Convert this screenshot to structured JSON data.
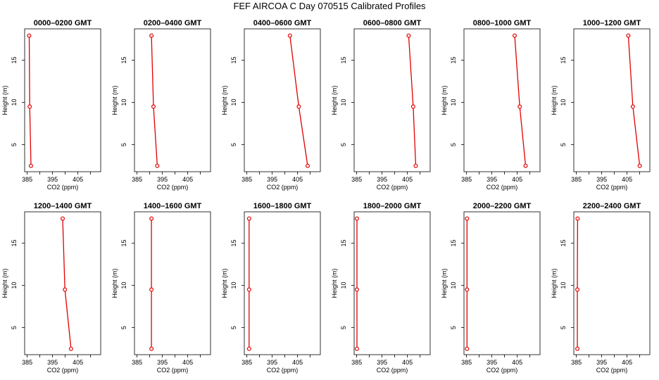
{
  "title": "FEF  AIRCOA C  Day 070515  Calibrated Profiles",
  "colors": {
    "series": "#e00000",
    "axis": "#000000",
    "background": "#ffffff"
  },
  "chart_data": [
    {
      "type": "line",
      "title": "0000–0200 GMT",
      "xlabel": "CO2 (ppm)",
      "ylabel": "Height (m)",
      "xlim": [
        384,
        414
      ],
      "ylim": [
        1.8,
        18.7
      ],
      "xticks": [
        385,
        390,
        395,
        400,
        405,
        410
      ],
      "xtick_labels": [
        "385",
        "",
        "395",
        "",
        "405",
        ""
      ],
      "yticks": [
        5,
        10,
        15
      ],
      "grid": false,
      "points": [
        {
          "x": 385.8,
          "y": 17.9
        },
        {
          "x": 386.0,
          "y": 9.5
        },
        {
          "x": 386.5,
          "y": 2.5
        }
      ]
    },
    {
      "type": "line",
      "title": "0200–0400 GMT",
      "xlabel": "CO2 (ppm)",
      "ylabel": "Height (m)",
      "xlim": [
        384,
        414
      ],
      "ylim": [
        1.8,
        18.7
      ],
      "xticks": [
        385,
        390,
        395,
        400,
        405,
        410
      ],
      "xtick_labels": [
        "385",
        "",
        "395",
        "",
        "405",
        ""
      ],
      "yticks": [
        5,
        10,
        15
      ],
      "grid": false,
      "points": [
        {
          "x": 390.7,
          "y": 17.9
        },
        {
          "x": 391.5,
          "y": 9.5
        },
        {
          "x": 393.0,
          "y": 2.5
        }
      ]
    },
    {
      "type": "line",
      "title": "0400–0600 GMT",
      "xlabel": "CO2 (ppm)",
      "ylabel": "Height (m)",
      "xlim": [
        384,
        414
      ],
      "ylim": [
        1.8,
        18.7
      ],
      "xticks": [
        385,
        390,
        395,
        400,
        405,
        410
      ],
      "xtick_labels": [
        "385",
        "",
        "395",
        "",
        "405",
        ""
      ],
      "yticks": [
        5,
        10,
        15
      ],
      "grid": false,
      "points": [
        {
          "x": 402.0,
          "y": 17.9
        },
        {
          "x": 405.5,
          "y": 9.5
        },
        {
          "x": 409.0,
          "y": 2.5
        }
      ]
    },
    {
      "type": "line",
      "title": "0600–0800 GMT",
      "xlabel": "CO2 (ppm)",
      "ylabel": "Height (m)",
      "xlim": [
        384,
        414
      ],
      "ylim": [
        1.8,
        18.7
      ],
      "xticks": [
        385,
        390,
        395,
        400,
        405,
        410
      ],
      "xtick_labels": [
        "385",
        "",
        "395",
        "",
        "405",
        ""
      ],
      "yticks": [
        5,
        10,
        15
      ],
      "grid": false,
      "points": [
        {
          "x": 405.5,
          "y": 17.9
        },
        {
          "x": 407.3,
          "y": 9.5
        },
        {
          "x": 408.3,
          "y": 2.5
        }
      ]
    },
    {
      "type": "line",
      "title": "0800–1000 GMT",
      "xlabel": "CO2 (ppm)",
      "ylabel": "Height (m)",
      "xlim": [
        384,
        414
      ],
      "ylim": [
        1.8,
        18.7
      ],
      "xticks": [
        385,
        390,
        395,
        400,
        405,
        410
      ],
      "xtick_labels": [
        "385",
        "",
        "395",
        "",
        "405",
        ""
      ],
      "yticks": [
        5,
        10,
        15
      ],
      "grid": false,
      "points": [
        {
          "x": 404.0,
          "y": 17.9
        },
        {
          "x": 406.0,
          "y": 9.5
        },
        {
          "x": 408.3,
          "y": 2.5
        }
      ]
    },
    {
      "type": "line",
      "title": "1000–1200 GMT",
      "xlabel": "CO2 (ppm)",
      "ylabel": "Height (m)",
      "xlim": [
        384,
        414
      ],
      "ylim": [
        1.8,
        18.7
      ],
      "xticks": [
        385,
        390,
        395,
        400,
        405,
        410
      ],
      "xtick_labels": [
        "385",
        "",
        "395",
        "",
        "405",
        ""
      ],
      "yticks": [
        5,
        10,
        15
      ],
      "grid": false,
      "points": [
        {
          "x": 405.5,
          "y": 17.9
        },
        {
          "x": 407.3,
          "y": 9.5
        },
        {
          "x": 410.0,
          "y": 2.5
        }
      ]
    },
    {
      "type": "line",
      "title": "1200–1400 GMT",
      "xlabel": "CO2 (ppm)",
      "ylabel": "Height (m)",
      "xlim": [
        384,
        414
      ],
      "ylim": [
        1.8,
        18.7
      ],
      "xticks": [
        385,
        390,
        395,
        400,
        405,
        410
      ],
      "xtick_labels": [
        "385",
        "",
        "395",
        "",
        "405",
        ""
      ],
      "yticks": [
        5,
        10,
        15
      ],
      "grid": false,
      "points": [
        {
          "x": 399.0,
          "y": 17.9
        },
        {
          "x": 399.9,
          "y": 9.5
        },
        {
          "x": 402.3,
          "y": 2.5
        }
      ]
    },
    {
      "type": "line",
      "title": "1400–1600 GMT",
      "xlabel": "CO2 (ppm)",
      "ylabel": "Height (m)",
      "xlim": [
        384,
        414
      ],
      "ylim": [
        1.8,
        18.7
      ],
      "xticks": [
        385,
        390,
        395,
        400,
        405,
        410
      ],
      "xtick_labels": [
        "385",
        "",
        "395",
        "",
        "405",
        ""
      ],
      "yticks": [
        5,
        10,
        15
      ],
      "grid": false,
      "points": [
        {
          "x": 390.7,
          "y": 17.9
        },
        {
          "x": 390.7,
          "y": 9.5
        },
        {
          "x": 390.7,
          "y": 2.5
        }
      ]
    },
    {
      "type": "line",
      "title": "1600–1800 GMT",
      "xlabel": "CO2 (ppm)",
      "ylabel": "Height (m)",
      "xlim": [
        384,
        414
      ],
      "ylim": [
        1.8,
        18.7
      ],
      "xticks": [
        385,
        390,
        395,
        400,
        405,
        410
      ],
      "xtick_labels": [
        "385",
        "",
        "395",
        "",
        "405",
        ""
      ],
      "yticks": [
        5,
        10,
        15
      ],
      "grid": false,
      "points": [
        {
          "x": 385.9,
          "y": 17.9
        },
        {
          "x": 385.9,
          "y": 9.5
        },
        {
          "x": 385.9,
          "y": 2.5
        }
      ]
    },
    {
      "type": "line",
      "title": "1800–2000 GMT",
      "xlabel": "CO2 (ppm)",
      "ylabel": "Height (m)",
      "xlim": [
        384,
        414
      ],
      "ylim": [
        1.8,
        18.7
      ],
      "xticks": [
        385,
        390,
        395,
        400,
        405,
        410
      ],
      "xtick_labels": [
        "385",
        "",
        "395",
        "",
        "405",
        ""
      ],
      "yticks": [
        5,
        10,
        15
      ],
      "grid": false,
      "points": [
        {
          "x": 385.1,
          "y": 17.9
        },
        {
          "x": 385.1,
          "y": 9.5
        },
        {
          "x": 385.1,
          "y": 2.5
        }
      ]
    },
    {
      "type": "line",
      "title": "2000–2200 GMT",
      "xlabel": "CO2 (ppm)",
      "ylabel": "Height (m)",
      "xlim": [
        384,
        414
      ],
      "ylim": [
        1.8,
        18.7
      ],
      "xticks": [
        385,
        390,
        395,
        400,
        405,
        410
      ],
      "xtick_labels": [
        "385",
        "",
        "395",
        "",
        "405",
        ""
      ],
      "yticks": [
        5,
        10,
        15
      ],
      "grid": false,
      "points": [
        {
          "x": 385.2,
          "y": 17.9
        },
        {
          "x": 385.2,
          "y": 9.5
        },
        {
          "x": 385.2,
          "y": 2.5
        }
      ]
    },
    {
      "type": "line",
      "title": "2200–2400 GMT",
      "xlabel": "CO2 (ppm)",
      "ylabel": "Height (m)",
      "xlim": [
        384,
        414
      ],
      "ylim": [
        1.8,
        18.7
      ],
      "xticks": [
        385,
        390,
        395,
        400,
        405,
        410
      ],
      "xtick_labels": [
        "385",
        "",
        "395",
        "",
        "405",
        ""
      ],
      "yticks": [
        5,
        10,
        15
      ],
      "grid": false,
      "points": [
        {
          "x": 385.5,
          "y": 17.9
        },
        {
          "x": 385.4,
          "y": 9.5
        },
        {
          "x": 385.4,
          "y": 2.5
        }
      ]
    }
  ]
}
